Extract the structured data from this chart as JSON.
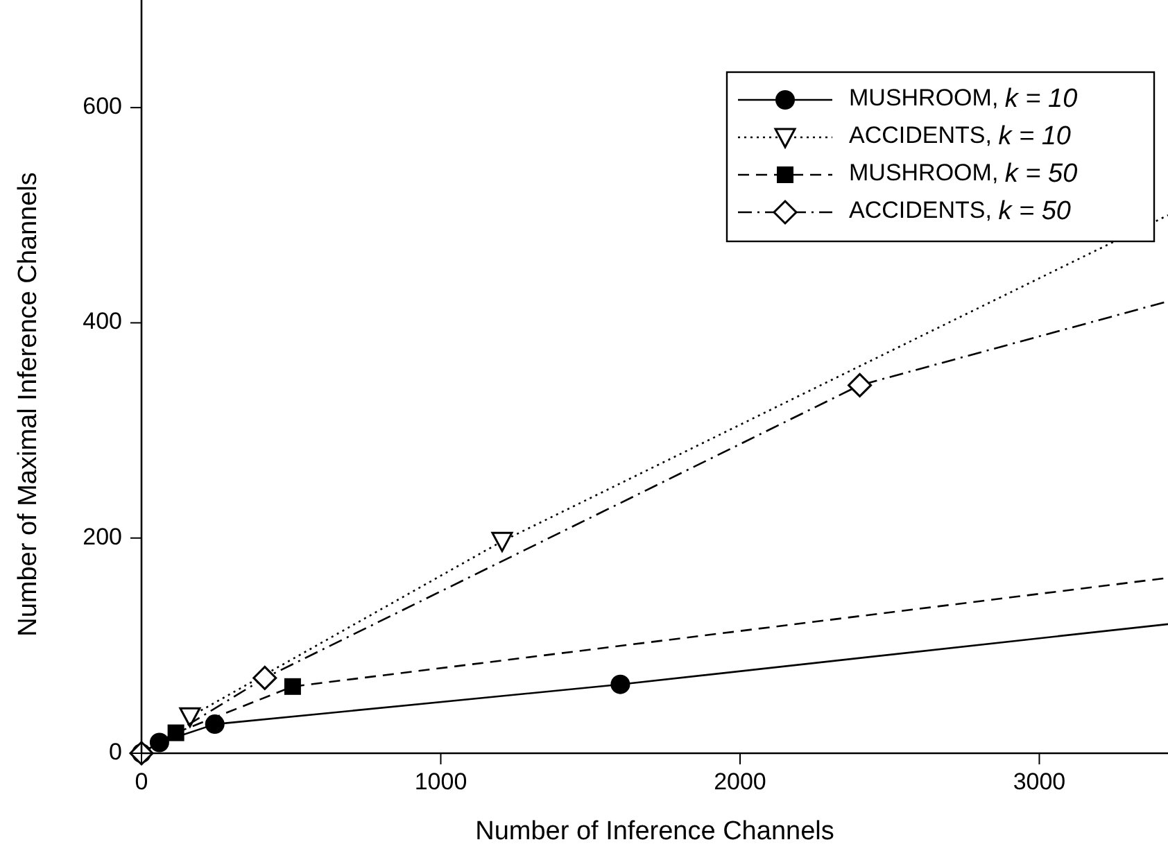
{
  "chart_data": {
    "type": "line",
    "xlabel": "Number of Inference Channels",
    "ylabel": "Number of Maximal Inference Channels",
    "xlim": [
      0,
      3430
    ],
    "ylim": [
      0,
      700
    ],
    "xticks": [
      0,
      1000,
      2000,
      3000
    ],
    "yticks": [
      0,
      200,
      400,
      600
    ],
    "grid": false,
    "legend": "top right",
    "series": [
      {
        "name": "MUSHROOM, k = 10",
        "color": "#000000",
        "marker": "circle",
        "line_style": "solid",
        "x": [
          0,
          60,
          245,
          1600,
          3430
        ],
        "values": [
          0,
          10,
          27,
          64,
          120
        ]
      },
      {
        "name": "ACCIDENTS, k = 10",
        "color": "#000000",
        "marker": "triangle",
        "line_style": "dotted",
        "x": [
          162,
          1205,
          3430
        ],
        "values": [
          34,
          197,
          500
        ]
      },
      {
        "name": "MUSHROOM, k = 50",
        "color": "#000000",
        "marker": "square",
        "line_style": "dashed",
        "x": [
          115,
          505,
          3430
        ],
        "values": [
          19,
          62,
          163
        ]
      },
      {
        "name": "ACCIDENTS, k = 50",
        "color": "#000000",
        "marker": "diamond",
        "line_style": "dashdot",
        "x": [
          0,
          412,
          2400,
          3430
        ],
        "values": [
          0,
          70,
          342,
          420
        ]
      }
    ]
  }
}
